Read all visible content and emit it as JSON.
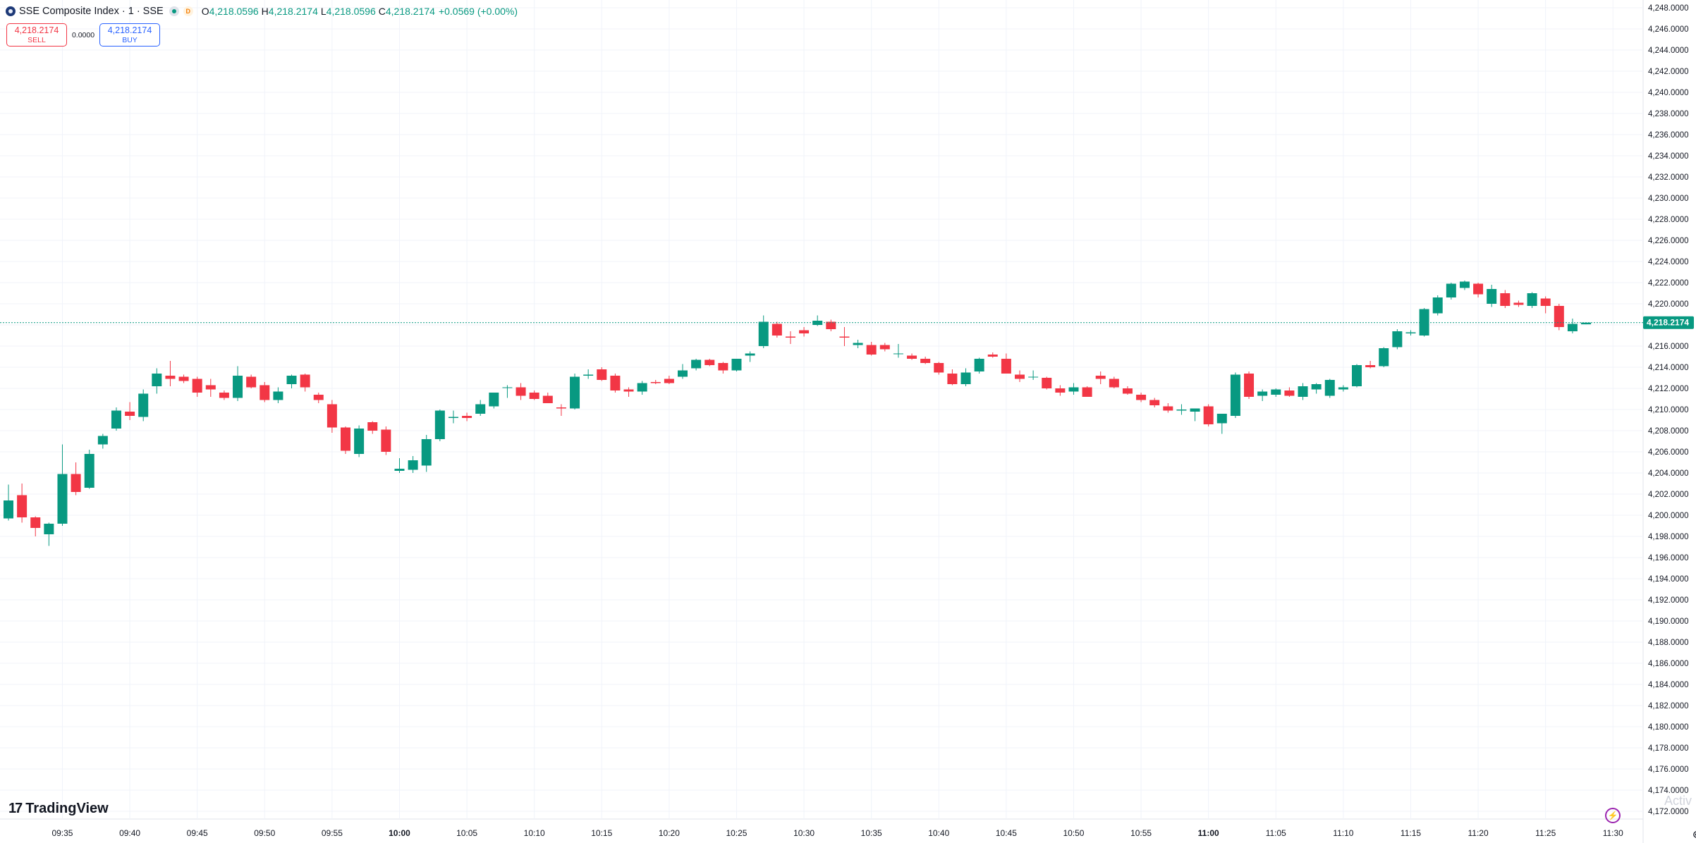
{
  "header": {
    "title": "SSE Composite Index · 1 · SSE",
    "badge": "D",
    "ohlc": [
      {
        "k": "O",
        "v": "4,218.0596"
      },
      {
        "k": "H",
        "v": "4,218.2174"
      },
      {
        "k": "L",
        "v": "4,218.0596"
      },
      {
        "k": "C",
        "v": "4,218.2174"
      }
    ],
    "change": "+0.0569 (+0.00%)"
  },
  "trade": {
    "sell_price": "4,218.2174",
    "sell_label": "SELL",
    "spread": "0.0000",
    "buy_price": "4,218.2174",
    "buy_label": "BUY"
  },
  "branding": {
    "logo_text": "TradingView",
    "watermark": "Activ"
  },
  "icons": {
    "logo": "tradingview-logo-icon",
    "lightning": "lightning-icon",
    "settings": "gear-icon",
    "symbol": "symbol-icon",
    "status": "market-status-icon"
  },
  "colors": {
    "up": "#089981",
    "down": "#f23645",
    "grid": "#f0f3fa",
    "price_line": "#089981",
    "accent": "#2962ff"
  },
  "chart_data": {
    "type": "candlestick",
    "title": "SSE Composite Index · 1 · SSE",
    "ylim": [
      4172,
      4249
    ],
    "y_ticks": [
      "4,172.0000",
      "4,174.0000",
      "4,176.0000",
      "4,178.0000",
      "4,180.0000",
      "4,182.0000",
      "4,184.0000",
      "4,186.0000",
      "4,188.0000",
      "4,190.0000",
      "4,192.0000",
      "4,194.0000",
      "4,196.0000",
      "4,198.0000",
      "4,200.0000",
      "4,202.0000",
      "4,204.0000",
      "4,206.0000",
      "4,208.0000",
      "4,210.0000",
      "4,212.0000",
      "4,214.0000",
      "4,216.0000",
      "4,218.0000",
      "4,220.0000",
      "4,222.0000",
      "4,224.0000",
      "4,226.0000",
      "4,228.0000",
      "4,230.0000",
      "4,232.0000",
      "4,234.0000",
      "4,236.0000",
      "4,238.0000",
      "4,240.0000",
      "4,242.0000",
      "4,244.0000",
      "4,246.0000",
      "4,248.0000"
    ],
    "x_ticks": [
      {
        "t": "09:35",
        "bold": false
      },
      {
        "t": "09:40",
        "bold": false
      },
      {
        "t": "09:45",
        "bold": false
      },
      {
        "t": "09:50",
        "bold": false
      },
      {
        "t": "09:55",
        "bold": false
      },
      {
        "t": "10:00",
        "bold": true
      },
      {
        "t": "10:05",
        "bold": false
      },
      {
        "t": "10:10",
        "bold": false
      },
      {
        "t": "10:15",
        "bold": false
      },
      {
        "t": "10:20",
        "bold": false
      },
      {
        "t": "10:25",
        "bold": false
      },
      {
        "t": "10:30",
        "bold": false
      },
      {
        "t": "10:35",
        "bold": false
      },
      {
        "t": "10:40",
        "bold": false
      },
      {
        "t": "10:45",
        "bold": false
      },
      {
        "t": "10:50",
        "bold": false
      },
      {
        "t": "10:55",
        "bold": false
      },
      {
        "t": "11:00",
        "bold": true
      },
      {
        "t": "11:05",
        "bold": false
      },
      {
        "t": "11:10",
        "bold": false
      },
      {
        "t": "11:15",
        "bold": false
      },
      {
        "t": "11:20",
        "bold": false
      },
      {
        "t": "11:25",
        "bold": false
      },
      {
        "t": "11:30",
        "bold": false
      }
    ],
    "first_bar_time": "09:31",
    "last_price": "4,218.2174",
    "last_value": 4218.2174,
    "candles": [
      [
        4199.7,
        4202.9,
        4199.5,
        4201.4
      ],
      [
        4201.9,
        4203.0,
        4199.3,
        4199.8
      ],
      [
        4199.8,
        4199.9,
        4198.0,
        4198.8
      ],
      [
        4198.2,
        4199.3,
        4197.1,
        4199.2
      ],
      [
        4199.2,
        4206.7,
        4199.0,
        4203.9
      ],
      [
        4203.9,
        4205.0,
        4201.9,
        4202.2
      ],
      [
        4202.6,
        4206.2,
        4202.5,
        4205.8
      ],
      [
        4206.7,
        4207.7,
        4206.3,
        4207.5
      ],
      [
        4208.2,
        4210.2,
        4208.0,
        4209.9
      ],
      [
        4209.8,
        4210.7,
        4209.0,
        4209.4
      ],
      [
        4209.3,
        4211.9,
        4208.9,
        4211.5
      ],
      [
        4212.2,
        4213.9,
        4211.5,
        4213.4
      ],
      [
        4213.2,
        4214.6,
        4212.2,
        4212.9
      ],
      [
        4213.1,
        4213.3,
        4212.5,
        4212.7
      ],
      [
        4212.9,
        4213.1,
        4211.2,
        4211.6
      ],
      [
        4212.3,
        4212.9,
        4211.2,
        4211.9
      ],
      [
        4211.6,
        4211.8,
        4210.9,
        4211.1
      ],
      [
        4211.1,
        4214.1,
        4210.8,
        4213.2
      ],
      [
        4213.1,
        4213.3,
        4212.0,
        4212.1
      ],
      [
        4212.3,
        4212.6,
        4210.7,
        4210.9
      ],
      [
        4210.9,
        4212.1,
        4210.6,
        4211.7
      ],
      [
        4212.4,
        4213.3,
        4212.0,
        4213.2
      ],
      [
        4213.3,
        4213.4,
        4211.7,
        4212.1
      ],
      [
        4211.4,
        4211.6,
        4210.6,
        4210.9
      ],
      [
        4210.5,
        4210.9,
        4207.8,
        4208.3
      ],
      [
        4208.3,
        4208.4,
        4205.8,
        4206.1
      ],
      [
        4205.8,
        4208.5,
        4205.5,
        4208.2
      ],
      [
        4208.8,
        4208.9,
        4207.7,
        4208.0
      ],
      [
        4208.1,
        4208.4,
        4205.7,
        4206.0
      ],
      [
        4204.2,
        4205.4,
        4204.0,
        4204.4
      ],
      [
        4204.3,
        4205.6,
        4204.0,
        4205.2
      ],
      [
        4204.7,
        4207.6,
        4204.1,
        4207.2
      ],
      [
        4207.2,
        4210.0,
        4207.0,
        4209.9
      ],
      [
        4209.2,
        4209.9,
        4208.7,
        4209.3
      ],
      [
        4209.4,
        4209.7,
        4208.9,
        4209.2
      ],
      [
        4209.6,
        4210.9,
        4209.4,
        4210.5
      ],
      [
        4210.3,
        4211.6,
        4210.1,
        4211.6
      ],
      [
        4212.1,
        4212.3,
        4211.1,
        4212.1
      ],
      [
        4212.1,
        4212.5,
        4210.9,
        4211.3
      ],
      [
        4211.6,
        4211.8,
        4210.9,
        4211.0
      ],
      [
        4211.3,
        4211.6,
        4210.7,
        4210.6
      ],
      [
        4210.2,
        4210.5,
        4209.4,
        4210.1
      ],
      [
        4210.1,
        4213.4,
        4210.0,
        4213.1
      ],
      [
        4213.2,
        4213.8,
        4212.9,
        4213.3
      ],
      [
        4213.8,
        4214.0,
        4212.7,
        4212.8
      ],
      [
        4213.2,
        4213.4,
        4211.6,
        4211.8
      ],
      [
        4211.9,
        4212.1,
        4211.2,
        4211.7
      ],
      [
        4211.7,
        4212.7,
        4211.4,
        4212.5
      ],
      [
        4212.6,
        4212.8,
        4212.4,
        4212.5
      ],
      [
        4212.9,
        4213.2,
        4212.4,
        4212.5
      ],
      [
        4213.1,
        4214.3,
        4212.9,
        4213.7
      ],
      [
        4213.9,
        4214.8,
        4213.7,
        4214.7
      ],
      [
        4214.7,
        4214.8,
        4214.1,
        4214.2
      ],
      [
        4214.4,
        4214.5,
        4213.4,
        4213.7
      ],
      [
        4213.7,
        4214.8,
        4213.6,
        4214.8
      ],
      [
        4215.1,
        4215.5,
        4214.5,
        4215.3
      ],
      [
        4216.0,
        4218.9,
        4215.8,
        4218.3
      ],
      [
        4218.1,
        4218.3,
        4216.8,
        4217.0
      ],
      [
        4216.9,
        4217.4,
        4216.2,
        4216.8
      ],
      [
        4217.5,
        4217.8,
        4216.9,
        4217.2
      ],
      [
        4218.0,
        4218.9,
        4217.9,
        4218.4
      ],
      [
        4218.3,
        4218.5,
        4217.4,
        4217.6
      ],
      [
        4216.9,
        4217.8,
        4216.0,
        4216.8
      ],
      [
        4216.1,
        4216.6,
        4215.8,
        4216.3
      ],
      [
        4216.1,
        4216.4,
        4215.1,
        4215.2
      ],
      [
        4216.1,
        4216.3,
        4215.5,
        4215.7
      ],
      [
        4215.3,
        4216.2,
        4214.9,
        4215.3
      ],
      [
        4215.1,
        4215.3,
        4214.7,
        4214.8
      ],
      [
        4214.8,
        4215.0,
        4214.3,
        4214.4
      ],
      [
        4214.4,
        4214.5,
        4213.3,
        4213.5
      ],
      [
        4213.4,
        4213.8,
        4212.3,
        4212.4
      ],
      [
        4212.4,
        4213.9,
        4212.2,
        4213.5
      ],
      [
        4213.6,
        4214.9,
        4213.4,
        4214.8
      ],
      [
        4215.2,
        4215.4,
        4214.9,
        4215.0
      ],
      [
        4214.8,
        4215.3,
        4213.4,
        4213.4
      ],
      [
        4213.3,
        4213.7,
        4212.6,
        4212.9
      ],
      [
        4213.1,
        4213.7,
        4212.8,
        4213.1
      ],
      [
        4213.0,
        4213.1,
        4211.9,
        4212.0
      ],
      [
        4212.0,
        4212.3,
        4211.3,
        4211.6
      ],
      [
        4211.7,
        4212.5,
        4211.4,
        4212.1
      ],
      [
        4212.1,
        4212.2,
        4211.4,
        4211.2
      ],
      [
        4213.2,
        4213.6,
        4212.4,
        4212.9
      ],
      [
        4212.9,
        4213.1,
        4212.0,
        4212.1
      ],
      [
        4212.0,
        4212.2,
        4211.4,
        4211.5
      ],
      [
        4211.4,
        4211.6,
        4210.7,
        4210.9
      ],
      [
        4210.9,
        4211.1,
        4210.2,
        4210.4
      ],
      [
        4210.3,
        4210.6,
        4209.7,
        4209.9
      ],
      [
        4209.9,
        4210.5,
        4209.5,
        4210.0
      ],
      [
        4209.8,
        4210.1,
        4208.9,
        4210.1
      ],
      [
        4210.3,
        4210.5,
        4208.4,
        4208.6
      ],
      [
        4208.7,
        4208.9,
        4207.7,
        4209.6
      ],
      [
        4209.4,
        4213.5,
        4209.2,
        4213.3
      ],
      [
        4213.4,
        4213.6,
        4211.0,
        4211.2
      ],
      [
        4211.3,
        4211.9,
        4210.8,
        4211.7
      ],
      [
        4211.4,
        4212.0,
        4211.2,
        4211.9
      ],
      [
        4211.8,
        4212.1,
        4211.2,
        4211.3
      ],
      [
        4211.2,
        4212.5,
        4210.9,
        4212.2
      ],
      [
        4211.9,
        4212.5,
        4211.5,
        4212.4
      ],
      [
        4211.3,
        4212.9,
        4211.1,
        4212.8
      ],
      [
        4211.9,
        4212.3,
        4211.7,
        4212.1
      ],
      [
        4212.2,
        4214.3,
        4212.1,
        4214.2
      ],
      [
        4214.2,
        4214.6,
        4213.9,
        4214.0
      ],
      [
        4214.1,
        4215.9,
        4214.0,
        4215.8
      ],
      [
        4215.9,
        4217.6,
        4215.7,
        4217.4
      ],
      [
        4217.2,
        4217.5,
        4217.0,
        4217.3
      ],
      [
        4217.0,
        4219.6,
        4216.9,
        4219.5
      ],
      [
        4219.1,
        4220.8,
        4218.9,
        4220.6
      ],
      [
        4220.6,
        4222.0,
        4220.4,
        4221.9
      ],
      [
        4221.5,
        4222.2,
        4221.3,
        4222.1
      ],
      [
        4221.9,
        4222.0,
        4220.6,
        4220.9
      ],
      [
        4220.0,
        4221.8,
        4219.7,
        4221.4
      ],
      [
        4221.0,
        4221.3,
        4219.6,
        4219.8
      ],
      [
        4220.1,
        4220.3,
        4219.7,
        4219.9
      ],
      [
        4219.8,
        4221.1,
        4219.6,
        4221.0
      ],
      [
        4220.5,
        4220.7,
        4219.1,
        4219.8
      ],
      [
        4219.8,
        4220.0,
        4217.5,
        4217.8
      ],
      [
        4217.4,
        4218.6,
        4217.2,
        4218.1
      ],
      [
        4218.06,
        4218.22,
        4218.06,
        4218.22
      ]
    ]
  }
}
